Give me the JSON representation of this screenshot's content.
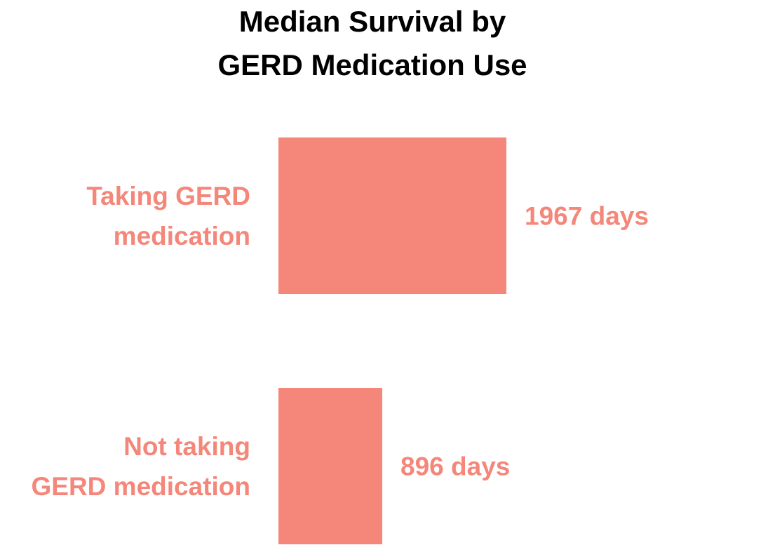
{
  "chart_data": {
    "type": "bar",
    "orientation": "horizontal",
    "title_lines": [
      "Median Survival by",
      "GERD Medication Use"
    ],
    "categories": [
      [
        "Taking GERD",
        "medication"
      ],
      [
        "Not taking",
        "GERD medication"
      ]
    ],
    "values": [
      1967,
      896
    ],
    "value_labels": [
      "1967 days",
      "896 days"
    ],
    "xlabel": "",
    "ylabel": "",
    "grid": false,
    "axes_visible": false,
    "bar_color": "#f4877a",
    "label_color": "#f4877a"
  }
}
